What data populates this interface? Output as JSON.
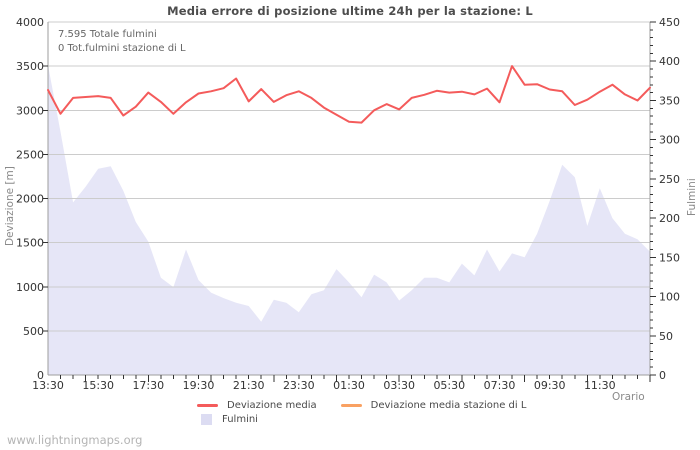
{
  "watermark": "www.lightningmaps.org",
  "colors": {
    "deviazione_media": "#f45b5b",
    "deviazione_stazione": "#f9a162",
    "fulmini_fill": "#e6e6f7",
    "fulmini_swatch": "#dcdcf2",
    "grid": "#cccccc",
    "frame": "#9e9e9e",
    "tick": "#333333"
  },
  "chart_data": {
    "type": "line",
    "title": "Media errore di posizione ultime 24h per la stazione: L",
    "xlabel": "Orario",
    "ylabel_left": "Deviazione [m]",
    "ylabel_right": "Fulmini",
    "ylim_left": [
      0,
      4000
    ],
    "ylim_right": [
      0,
      450
    ],
    "y_left_tick_step": 500,
    "y_right_tick_step": 50,
    "y_right_minor_step": 10,
    "grid": true,
    "legend_position": "bottom",
    "annotations": [
      "7.595 Totale fulmini",
      "0 Tot.fulmini stazione di L"
    ],
    "x_tick_labels": [
      "13:30",
      "15:30",
      "17:30",
      "19:30",
      "21:30",
      "23:30",
      "01:30",
      "03:30",
      "05:30",
      "07:30",
      "09:30",
      "11:30"
    ],
    "x": [
      "13:30",
      "14:00",
      "14:30",
      "15:00",
      "15:30",
      "16:00",
      "16:30",
      "17:00",
      "17:30",
      "18:00",
      "18:30",
      "19:00",
      "19:30",
      "20:00",
      "20:30",
      "21:00",
      "21:30",
      "22:00",
      "22:30",
      "23:00",
      "23:30",
      "00:00",
      "00:30",
      "01:00",
      "01:30",
      "02:00",
      "02:30",
      "03:00",
      "03:30",
      "04:00",
      "04:30",
      "05:00",
      "05:30",
      "06:00",
      "06:30",
      "07:00",
      "07:30",
      "08:00",
      "08:30",
      "09:00",
      "09:30",
      "10:00",
      "10:30",
      "11:00",
      "11:30",
      "12:00",
      "12:30",
      "13:00",
      "13:30"
    ],
    "series": [
      {
        "name": "Deviazione media",
        "style": "line",
        "axis": "left",
        "color": "#f45b5b",
        "values": [
          3230,
          2960,
          3140,
          3150,
          3160,
          3140,
          2940,
          3040,
          3200,
          3095,
          2960,
          3090,
          3190,
          3215,
          3250,
          3360,
          3100,
          3240,
          3095,
          3170,
          3215,
          3140,
          3030,
          2950,
          2870,
          2860,
          3000,
          3070,
          3010,
          3140,
          3175,
          3220,
          3200,
          3210,
          3180,
          3245,
          3090,
          3500,
          3290,
          3295,
          3235,
          3215,
          3060,
          3120,
          3210,
          3290,
          3180,
          3110,
          3255
        ]
      },
      {
        "name": "Deviazione media stazione di L",
        "style": "line",
        "axis": "left",
        "color": "#f9a162",
        "values": []
      },
      {
        "name": "Fulmini",
        "style": "area",
        "axis": "right",
        "color": "#e6e6f7",
        "values": [
          395,
          310,
          220,
          240,
          263,
          266,
          235,
          195,
          170,
          124,
          112,
          160,
          121,
          105,
          98,
          92,
          88,
          68,
          96,
          92,
          80,
          103,
          108,
          135,
          118,
          99,
          128,
          118,
          95,
          108,
          124,
          124,
          118,
          142,
          127,
          160,
          132,
          155,
          150,
          180,
          222,
          268,
          252,
          190,
          238,
          200,
          180,
          173,
          157
        ]
      }
    ]
  }
}
